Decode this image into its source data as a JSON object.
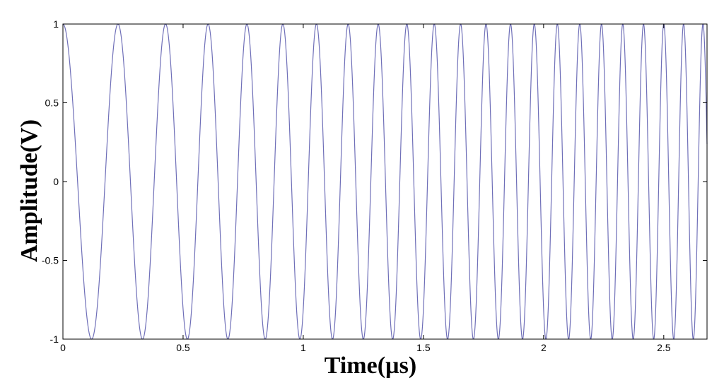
{
  "chart_data": {
    "type": "line",
    "title": "",
    "xlabel": "Time(µs)",
    "ylabel": "Amplitude(V)",
    "xlim": [
      0,
      2.68
    ],
    "ylim": [
      -1,
      1
    ],
    "x_ticks": [
      0,
      0.5,
      1,
      1.5,
      2,
      2.5
    ],
    "x_tick_labels": [
      "0",
      "0.5",
      "1",
      "1.5",
      "2",
      "2.5"
    ],
    "y_ticks": [
      -1,
      -0.5,
      0,
      0.5,
      1
    ],
    "y_tick_labels": [
      "-1",
      "-0.5",
      "0",
      "0.5",
      "1"
    ],
    "grid": false,
    "series": [
      {
        "function": "cos(2π(f0·t + k·t²/2))",
        "f0_MHz": 4.0,
        "chirp_rate_MHz_per_us": 3.2,
        "color": "#6f6fb8",
        "peaks_x": [
          0,
          0.23,
          0.44,
          0.62,
          0.79,
          0.95,
          1.1,
          1.24,
          1.38,
          1.51,
          1.63,
          1.75,
          1.86,
          1.97,
          2.08,
          2.18,
          2.28,
          2.38,
          2.48,
          2.57,
          2.66
        ]
      }
    ]
  }
}
